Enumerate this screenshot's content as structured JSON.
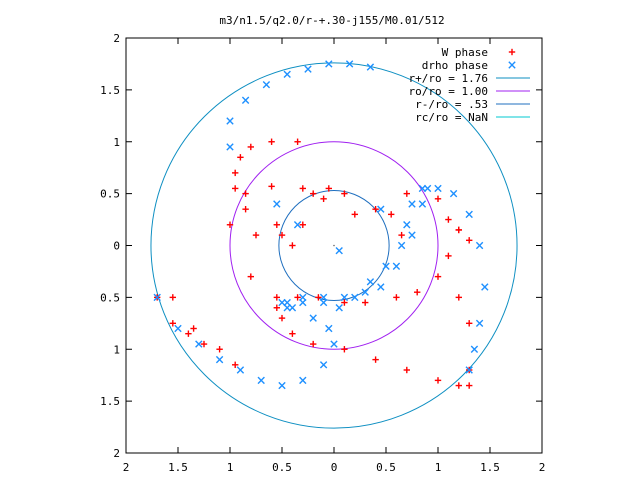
{
  "chart_data": {
    "type": "scatter",
    "title": "m3/n1.5/q2.0/r-+.30-j155/M0.01/512",
    "xlabel": "",
    "ylabel": "",
    "xlim": [
      -2,
      2
    ],
    "ylim": [
      -2,
      2
    ],
    "x_tick_values": [
      -2,
      -1.5,
      -1,
      -0.5,
      0,
      0.5,
      1,
      1.5,
      2
    ],
    "x_tick_labels": [
      "2",
      "1.5",
      "1",
      "0.5",
      "0",
      "0.5",
      "1",
      "1.5",
      "2"
    ],
    "y_tick_values": [
      2,
      1.5,
      1,
      0.5,
      0,
      -0.5,
      -1,
      -1.5,
      -2
    ],
    "y_tick_labels": [
      "2",
      "1.5",
      "1",
      "0.5",
      "0",
      "0.5",
      "1",
      "1.5",
      "2"
    ],
    "grid": false,
    "legend_position": "top-right",
    "series": [
      {
        "name": "W phase",
        "marker": "plus",
        "color": "#ff0000",
        "x": [
          -1.7,
          -1.55,
          -1.4,
          -1.25,
          -1.1,
          -0.95,
          -0.8,
          -0.75,
          -0.85,
          -0.95,
          -0.95,
          -0.9,
          -0.8,
          -0.6,
          -0.35,
          0.7,
          1.0,
          1.2,
          1.3,
          1.2,
          1.1,
          1.1,
          1.2,
          1.3,
          -0.55,
          -0.5,
          -0.4,
          -0.2,
          0.1,
          0.4,
          0.7,
          1.0,
          1.2,
          1.3,
          1.3,
          -1.0,
          -0.85,
          -0.6,
          -0.3,
          -0.1,
          0.2,
          0.4,
          0.55,
          0.65,
          -0.55,
          -0.35,
          -0.15,
          0.1,
          0.3,
          0.6,
          0.8,
          1.0,
          -1.55,
          -1.35,
          -0.55,
          -0.5,
          -0.4,
          -0.3,
          -0.2,
          -0.05,
          0.1
        ],
        "y": [
          -0.5,
          -0.75,
          -0.85,
          -0.95,
          -1.0,
          -1.15,
          -0.3,
          0.1,
          0.35,
          0.55,
          0.7,
          0.85,
          0.95,
          1.0,
          1.0,
          0.5,
          0.45,
          0.15,
          0.05,
          0.15,
          0.25,
          -0.1,
          -0.5,
          -0.75,
          -0.6,
          -0.7,
          -0.85,
          -0.95,
          -1.0,
          -1.1,
          -1.2,
          -1.3,
          -1.35,
          -1.35,
          -1.2,
          0.2,
          0.5,
          0.57,
          0.55,
          0.45,
          0.3,
          0.35,
          0.3,
          0.1,
          -0.5,
          -0.5,
          -0.5,
          -0.55,
          -0.55,
          -0.5,
          -0.45,
          -0.3,
          -0.5,
          -0.8,
          0.2,
          0.1,
          0.0,
          0.2,
          0.5,
          0.55,
          0.5
        ]
      },
      {
        "name": "drho phase",
        "marker": "cross",
        "color": "#1e90ff",
        "x": [
          -1.7,
          -1.5,
          -1.3,
          -1.1,
          -0.9,
          -0.7,
          -0.5,
          -0.3,
          -0.1,
          0.0,
          -0.05,
          -0.2,
          -0.4,
          -0.45,
          -0.3,
          -0.1,
          0.05,
          0.2,
          0.35,
          0.5,
          0.65,
          0.7,
          0.75,
          0.85,
          1.0,
          1.15,
          1.3,
          1.4,
          1.45,
          1.4,
          1.35,
          1.3,
          -0.5,
          -0.45,
          -0.3,
          -0.1,
          0.1,
          0.3,
          0.45,
          0.6,
          0.75,
          0.85,
          0.9,
          -1.0,
          -1.0,
          -0.85,
          -0.65,
          -0.45,
          -0.25,
          -0.05,
          0.15,
          0.35,
          -0.55,
          -0.35,
          0.05,
          0.45
        ],
        "y": [
          -0.5,
          -0.8,
          -0.95,
          -1.1,
          -1.2,
          -1.3,
          -1.35,
          -1.3,
          -1.15,
          -0.95,
          -0.8,
          -0.7,
          -0.6,
          -0.55,
          -0.5,
          -0.55,
          -0.6,
          -0.5,
          -0.35,
          -0.2,
          0.0,
          0.2,
          0.4,
          0.55,
          0.55,
          0.5,
          0.3,
          0.0,
          -0.4,
          -0.75,
          -1.0,
          -1.2,
          -0.55,
          -0.6,
          -0.55,
          -0.5,
          -0.5,
          -0.45,
          -0.4,
          -0.2,
          0.1,
          0.4,
          0.55,
          0.95,
          1.2,
          1.4,
          1.55,
          1.65,
          1.7,
          1.75,
          1.75,
          1.72,
          0.4,
          0.2,
          -0.05,
          0.35
        ]
      }
    ],
    "circles": [
      {
        "name": "r+/ro = 1.76",
        "r": 1.76,
        "color": "#0e8fc2"
      },
      {
        "name": "ro/ro = 1.00",
        "r": 1.0,
        "color": "#a020f0"
      },
      {
        "name": "r-/ro = .53",
        "r": 0.53,
        "color": "#1f6fbf"
      },
      {
        "name": "rc/ro = NaN",
        "r": null,
        "color": "#00c8d0"
      }
    ]
  }
}
